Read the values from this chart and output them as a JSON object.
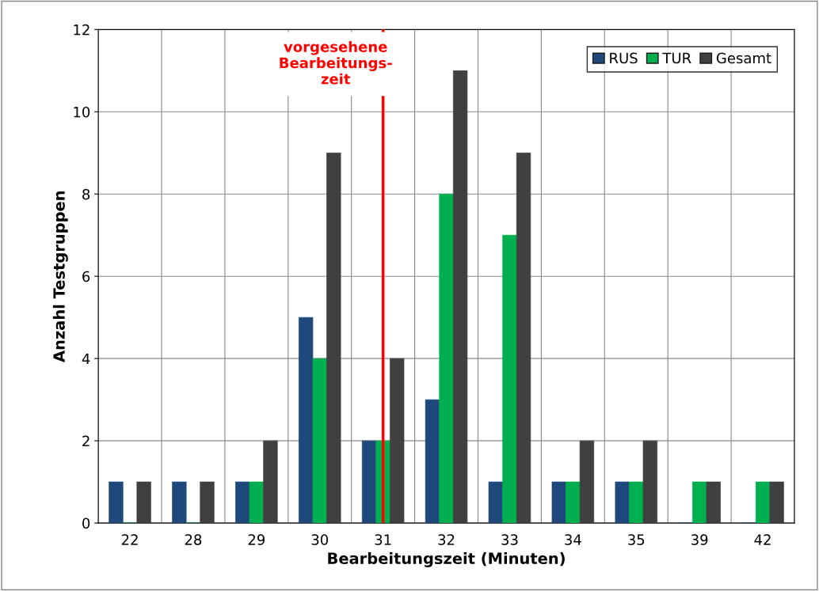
{
  "chart_data": {
    "type": "bar",
    "xlabel": "Bearbeitungszeit (Minuten)",
    "ylabel": "Anzahl Testgruppen",
    "categories": [
      "22",
      "28",
      "29",
      "30",
      "31",
      "32",
      "33",
      "34",
      "35",
      "39",
      "42"
    ],
    "series": [
      {
        "name": "RUS",
        "color": "#1f497d",
        "values": [
          1,
          1,
          1,
          5,
          2,
          3,
          1,
          1,
          1,
          0,
          0
        ]
      },
      {
        "name": "TUR",
        "color": "#00b050",
        "values": [
          0,
          0,
          1,
          4,
          2,
          8,
          7,
          1,
          1,
          1,
          1
        ]
      },
      {
        "name": "Gesamt",
        "color": "#404040",
        "values": [
          1,
          1,
          2,
          9,
          4,
          11,
          9,
          2,
          2,
          1,
          1
        ]
      }
    ],
    "ylim": [
      0,
      12
    ],
    "yticks": [
      0,
      2,
      4,
      6,
      8,
      10,
      12
    ],
    "grid": true,
    "legend": "top right",
    "ref_lines": [
      {
        "axis": "x",
        "value": "31",
        "label": "vorgesehene\nBearbeitungs-\nzeit",
        "color": "#ff0000"
      }
    ]
  }
}
